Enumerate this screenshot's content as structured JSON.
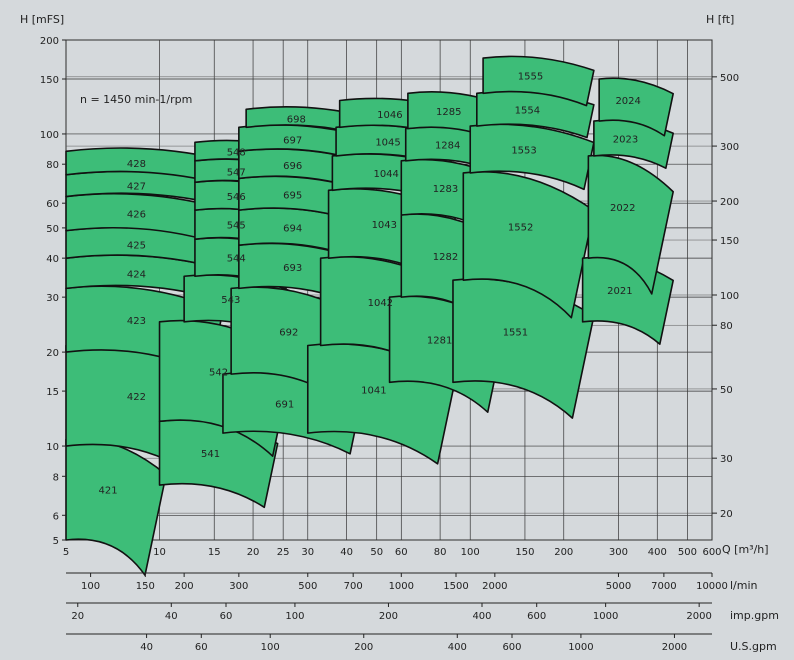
{
  "chart_data": {
    "type": "area",
    "title": "",
    "speed_label": "n = 1450 min-1/rpm",
    "ylabel_left": "H  [mFS]",
    "ylabel_right": "H  [ft]",
    "xlabel": "Q  [m³/h]",
    "x_scale": "log",
    "y_scale": "log",
    "xlim": [
      5,
      600
    ],
    "ylim": [
      5,
      200
    ],
    "x_ticks": [
      5,
      10,
      15,
      20,
      25,
      30,
      40,
      50,
      60,
      80,
      100,
      150,
      200,
      300,
      400,
      500,
      600
    ],
    "y_ticks_left": [
      5,
      6,
      8,
      10,
      15,
      20,
      30,
      40,
      50,
      60,
      80,
      100,
      150,
      200
    ],
    "y_ticks_right_ft": [
      20,
      30,
      50,
      80,
      100,
      150,
      200,
      300,
      500
    ],
    "grid": true,
    "fill_color": "#3dbd78",
    "secondary_axes": [
      {
        "unit": "l/min",
        "ticks": [
          100,
          150,
          200,
          300,
          500,
          700,
          1000,
          1500,
          2000,
          5000,
          7000,
          10000
        ]
      },
      {
        "unit": "imp.gpm",
        "ticks": [
          20,
          40,
          60,
          100,
          200,
          400,
          600,
          1000,
          2000
        ]
      },
      {
        "unit": "U.S.gpm",
        "ticks": [
          20,
          40,
          60,
          100,
          200,
          400,
          600,
          1000,
          2000
        ]
      }
    ],
    "pump_families": [
      {
        "family": "42",
        "models": [
          {
            "name": "421",
            "q_range": [
              5,
              10.5
            ],
            "h_range": [
              5,
              10.5
            ]
          },
          {
            "name": "422",
            "q_range": [
              5,
              16
            ],
            "h_range": [
              10,
              21
            ]
          },
          {
            "name": "423",
            "q_range": [
              5,
              16
            ],
            "h_range": [
              20,
              32
            ]
          },
          {
            "name": "424",
            "q_range": [
              5,
              16
            ],
            "h_range": [
              32,
              40
            ]
          },
          {
            "name": "425",
            "q_range": [
              5,
              16
            ],
            "h_range": [
              40,
              49
            ]
          },
          {
            "name": "426",
            "q_range": [
              5,
              16
            ],
            "h_range": [
              49,
              63
            ]
          },
          {
            "name": "427",
            "q_range": [
              5,
              16
            ],
            "h_range": [
              63,
              74
            ]
          },
          {
            "name": "428",
            "q_range": [
              5,
              16
            ],
            "h_range": [
              74,
              88
            ]
          }
        ]
      },
      {
        "family": "54",
        "models": [
          {
            "name": "541",
            "q_range": [
              10,
              24
            ],
            "h_range": [
              7.5,
              12
            ]
          },
          {
            "name": "542",
            "q_range": [
              10,
              27
            ],
            "h_range": [
              12,
              25
            ]
          },
          {
            "name": "543",
            "q_range": [
              12,
              27
            ],
            "h_range": [
              25,
              35
            ]
          },
          {
            "name": "544",
            "q_range": [
              13,
              27
            ],
            "h_range": [
              35,
              46
            ]
          },
          {
            "name": "545",
            "q_range": [
              13,
              27
            ],
            "h_range": [
              46,
              57
            ]
          },
          {
            "name": "546",
            "q_range": [
              13,
              27
            ],
            "h_range": [
              57,
              70
            ]
          },
          {
            "name": "547",
            "q_range": [
              13,
              27
            ],
            "h_range": [
              70,
              82
            ]
          },
          {
            "name": "548",
            "q_range": [
              13,
              27
            ],
            "h_range": [
              82,
              94
            ]
          }
        ]
      },
      {
        "family": "69",
        "models": [
          {
            "name": "691",
            "q_range": [
              16,
              45
            ],
            "h_range": [
              11,
              17
            ]
          },
          {
            "name": "692",
            "q_range": [
              17,
              45
            ],
            "h_range": [
              17,
              32
            ]
          },
          {
            "name": "693",
            "q_range": [
              18,
              45
            ],
            "h_range": [
              32,
              44
            ]
          },
          {
            "name": "694",
            "q_range": [
              18,
              45
            ],
            "h_range": [
              44,
              57
            ]
          },
          {
            "name": "695",
            "q_range": [
              18,
              45
            ],
            "h_range": [
              57,
              72
            ]
          },
          {
            "name": "696",
            "q_range": [
              18,
              45
            ],
            "h_range": [
              72,
              88
            ]
          },
          {
            "name": "697",
            "q_range": [
              18,
              45
            ],
            "h_range": [
              88,
              105
            ]
          },
          {
            "name": "698",
            "q_range": [
              19,
              45
            ],
            "h_range": [
              105,
              120
            ]
          }
        ]
      },
      {
        "family": "104",
        "models": [
          {
            "name": "1041",
            "q_range": [
              30,
              90
            ],
            "h_range": [
              11,
              21
            ]
          },
          {
            "name": "1042",
            "q_range": [
              33,
              90
            ],
            "h_range": [
              21,
              40
            ]
          },
          {
            "name": "1043",
            "q_range": [
              35,
              90
            ],
            "h_range": [
              40,
              66
            ]
          },
          {
            "name": "1044",
            "q_range": [
              36,
              90
            ],
            "h_range": [
              66,
              85
            ]
          },
          {
            "name": "1045",
            "q_range": [
              37,
              90
            ],
            "h_range": [
              85,
              105
            ]
          },
          {
            "name": "1046",
            "q_range": [
              38,
              90
            ],
            "h_range": [
              105,
              128
            ]
          }
        ]
      },
      {
        "family": "128",
        "models": [
          {
            "name": "1281",
            "q_range": [
              55,
              130
            ],
            "h_range": [
              16,
              30
            ]
          },
          {
            "name": "1282",
            "q_range": [
              60,
              130
            ],
            "h_range": [
              30,
              55
            ]
          },
          {
            "name": "1283",
            "q_range": [
              60,
              130
            ],
            "h_range": [
              55,
              82
            ]
          },
          {
            "name": "1284",
            "q_range": [
              62,
              130
            ],
            "h_range": [
              82,
              104
            ]
          },
          {
            "name": "1285",
            "q_range": [
              63,
              130
            ],
            "h_range": [
              104,
              135
            ]
          }
        ]
      },
      {
        "family": "155",
        "models": [
          {
            "name": "1551",
            "q_range": [
              88,
              250
            ],
            "h_range": [
              16,
              34
            ]
          },
          {
            "name": "1552",
            "q_range": [
              95,
              250
            ],
            "h_range": [
              34,
              75
            ]
          },
          {
            "name": "1553",
            "q_range": [
              100,
              250
            ],
            "h_range": [
              75,
              106
            ]
          },
          {
            "name": "1554",
            "q_range": [
              105,
              250
            ],
            "h_range": [
              106,
              135
            ]
          },
          {
            "name": "1555",
            "q_range": [
              110,
              250
            ],
            "h_range": [
              135,
              175
            ]
          }
        ]
      },
      {
        "family": "202",
        "models": [
          {
            "name": "2021",
            "q_range": [
              230,
              450
            ],
            "h_range": [
              25,
              40
            ]
          },
          {
            "name": "2022",
            "q_range": [
              240,
              450
            ],
            "h_range": [
              40,
              85
            ]
          },
          {
            "name": "2023",
            "q_range": [
              250,
              450
            ],
            "h_range": [
              85,
              110
            ]
          },
          {
            "name": "2024",
            "q_range": [
              260,
              450
            ],
            "h_range": [
              110,
              150
            ]
          }
        ]
      }
    ]
  }
}
